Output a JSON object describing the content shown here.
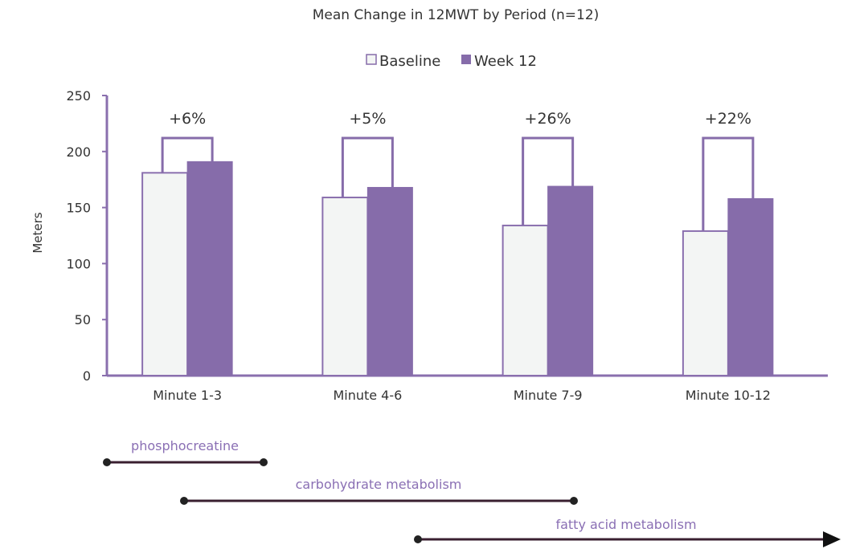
{
  "chart_data": {
    "type": "bar",
    "title": "Mean Change in 12MWT by Period (n=12)",
    "ylabel": "Meters",
    "ylim": [
      0,
      250
    ],
    "yticks": [
      0,
      50,
      100,
      150,
      200,
      250
    ],
    "categories": [
      "Minute 1-3",
      "Minute 4-6",
      "Minute 7-9",
      "Minute 10-12"
    ],
    "series": [
      {
        "name": "Baseline",
        "values": [
          181,
          159,
          134,
          129
        ],
        "color": "#f3f5f4",
        "stroke": "#8a6fae"
      },
      {
        "name": "Week 12",
        "values": [
          191,
          168,
          169,
          158
        ],
        "color": "#866caa",
        "stroke": "#866caa"
      }
    ],
    "annotations": [
      "+6%",
      "+5%",
      "+26%",
      "+22%"
    ],
    "bracket_level": 212,
    "legend_position": "top-center",
    "grid": false
  },
  "phases": [
    {
      "label": "phosphocreatine",
      "arrow": false
    },
    {
      "label": "carbohydrate metabolism",
      "arrow": false
    },
    {
      "label": "fatty acid metabolism",
      "arrow": true
    }
  ],
  "colors": {
    "accent": "#866caa",
    "phase_label": "#8a6fb4",
    "phase_line": "#3a1f30",
    "axis": "#8a6fae"
  }
}
